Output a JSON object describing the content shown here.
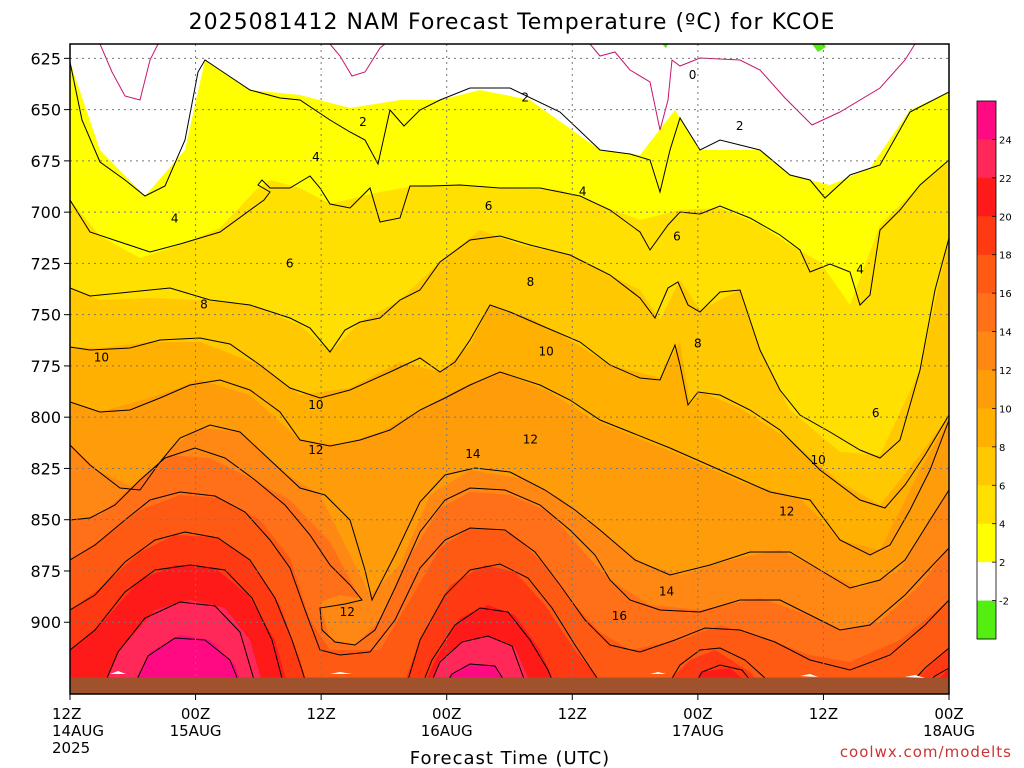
{
  "chart_data": {
    "type": "heatmap",
    "title": "2025081412 NAM Forecast Temperature (ºC) for KCOE",
    "xlabel": "Forecast Time (UTC)",
    "ylabel": "",
    "credit": "coolwx.com/modelts",
    "x_ticks": [
      {
        "hours": 0,
        "time": "12Z",
        "date": "14AUG",
        "year": "2025"
      },
      {
        "hours": 12,
        "time": "00Z",
        "date": "15AUG",
        "year": ""
      },
      {
        "hours": 24,
        "time": "12Z",
        "date": "",
        "year": ""
      },
      {
        "hours": 36,
        "time": "00Z",
        "date": "16AUG",
        "year": ""
      },
      {
        "hours": 48,
        "time": "12Z",
        "date": "",
        "year": ""
      },
      {
        "hours": 60,
        "time": "00Z",
        "date": "17AUG",
        "year": ""
      },
      {
        "hours": 72,
        "time": "12Z",
        "date": "",
        "year": ""
      },
      {
        "hours": 84,
        "time": "00Z",
        "date": "18AUG",
        "year": ""
      }
    ],
    "y_ticks": [
      "625",
      "650",
      "675",
      "700",
      "725",
      "750",
      "775",
      "800",
      "825",
      "850",
      "875",
      "900"
    ],
    "ylim": [
      935,
      618
    ],
    "xlim": [
      0,
      84
    ],
    "grid": true,
    "colorbar": {
      "labels": [
        "24",
        "22",
        "20",
        "18",
        "16",
        "14",
        "12",
        "10",
        "8",
        "6",
        "4",
        "2",
        "-2"
      ],
      "colors": [
        "#ff0a82",
        "#ff2858",
        "#ff1a1a",
        "#ff3a12",
        "#ff5a14",
        "#ff7018",
        "#ff8814",
        "#ff9c0a",
        "#ffb000",
        "#ffc800",
        "#ffe000",
        "#ffff00",
        "#ffffff",
        "#55ee11"
      ]
    },
    "legend_placement": "right",
    "surface_color": "#a0522d",
    "surface_pressure_mb": 927,
    "contour_labels": [
      {
        "text": "0",
        "hours": 59.5,
        "p": 633
      },
      {
        "text": "2",
        "hours": 43.5,
        "p": 644
      },
      {
        "text": "2",
        "hours": 28,
        "p": 656
      },
      {
        "text": "2",
        "hours": 64,
        "p": 658
      },
      {
        "text": "4",
        "hours": 23.5,
        "p": 673
      },
      {
        "text": "4",
        "hours": 49,
        "p": 690
      },
      {
        "text": "4",
        "hours": 10,
        "p": 703
      },
      {
        "text": "4",
        "hours": 75.5,
        "p": 728
      },
      {
        "text": "6",
        "hours": 40,
        "p": 697
      },
      {
        "text": "6",
        "hours": 58,
        "p": 712
      },
      {
        "text": "6",
        "hours": 21,
        "p": 725
      },
      {
        "text": "6",
        "hours": 77,
        "p": 798
      },
      {
        "text": "8",
        "hours": 12.8,
        "p": 745
      },
      {
        "text": "8",
        "hours": 44,
        "p": 734
      },
      {
        "text": "8",
        "hours": 60,
        "p": 764
      },
      {
        "text": "10",
        "hours": 3,
        "p": 771
      },
      {
        "text": "10",
        "hours": 45.5,
        "p": 768
      },
      {
        "text": "10",
        "hours": 23.5,
        "p": 794
      },
      {
        "text": "10",
        "hours": 71.5,
        "p": 821
      },
      {
        "text": "12",
        "hours": 44,
        "p": 811
      },
      {
        "text": "12",
        "hours": 23.5,
        "p": 816
      },
      {
        "text": "12",
        "hours": 68.5,
        "p": 846
      },
      {
        "text": "12",
        "hours": 26.5,
        "p": 895
      },
      {
        "text": "14",
        "hours": 38.5,
        "p": 818
      },
      {
        "text": "14",
        "hours": 57,
        "p": 885
      },
      {
        "text": "16",
        "hours": 52.5,
        "p": 897
      }
    ]
  }
}
